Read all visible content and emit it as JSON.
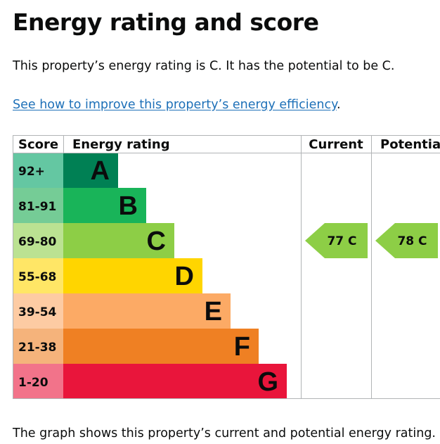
{
  "page": {
    "title": "Energy rating and score",
    "summary": "This property’s energy rating is C. It has the potential to be C.",
    "link_text": "See how to improve this property’s energy efficiency",
    "link_suffix": ".",
    "footer": "The graph shows this property’s current and potential energy rating."
  },
  "chart_data": {
    "type": "bar",
    "headers": {
      "score": "Score",
      "rating": "Energy rating",
      "current": "Current",
      "potential": "Potential"
    },
    "bands": [
      {
        "letter": "A",
        "range": "92+",
        "color": "#008054",
        "score_color": "#64c7a2"
      },
      {
        "letter": "B",
        "range": "81-91",
        "color": "#19b459",
        "score_color": "#75cc96"
      },
      {
        "letter": "C",
        "range": "69-80",
        "color": "#8dce46",
        "score_color": "#bbe292"
      },
      {
        "letter": "D",
        "range": "55-68",
        "color": "#ffd500",
        "score_color": "#ffe666"
      },
      {
        "letter": "E",
        "range": "39-54",
        "color": "#fcaa65",
        "score_color": "#fdcba3"
      },
      {
        "letter": "F",
        "range": "21-38",
        "color": "#ef8023",
        "score_color": "#f5b37b"
      },
      {
        "letter": "G",
        "range": "1-20",
        "color": "#e9153b",
        "score_color": "#f2738a"
      }
    ],
    "current": {
      "score": 77,
      "band": "C",
      "label": "77  C"
    },
    "potential": {
      "score": 78,
      "band": "C",
      "label": "78  C"
    }
  }
}
